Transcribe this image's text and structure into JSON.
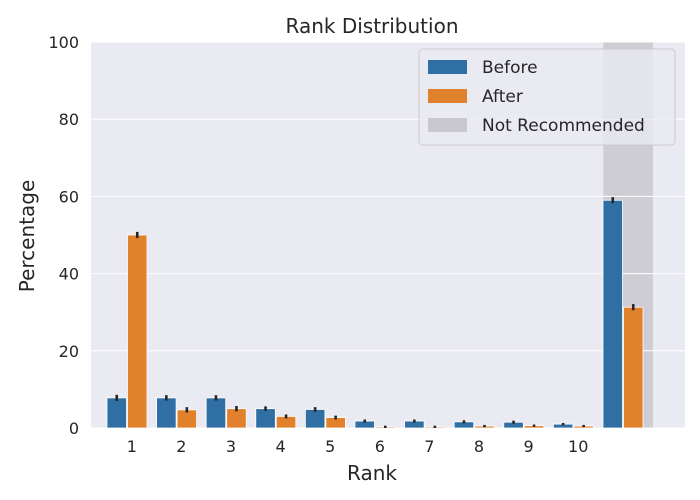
{
  "chart_data": {
    "type": "bar",
    "title": "Rank Distribution",
    "xlabel": "Rank",
    "ylabel": "Percentage",
    "ylim": [
      0,
      100
    ],
    "yticks": [
      "0",
      "20",
      "40",
      "60",
      "80",
      "100"
    ],
    "categories": [
      "1",
      "2",
      "3",
      "4",
      "5",
      "6",
      "7",
      "8",
      "9",
      "10",
      ""
    ],
    "series": [
      {
        "name": "Before",
        "color": "#2f6fa3",
        "values": [
          7.8,
          7.8,
          7.8,
          5.0,
          4.8,
          1.8,
          1.8,
          1.6,
          1.5,
          1.0,
          59.0
        ],
        "errors": [
          0.8,
          0.7,
          0.7,
          0.6,
          0.6,
          0.4,
          0.4,
          0.4,
          0.4,
          0.3,
          0.8
        ]
      },
      {
        "name": "After",
        "color": "#e1812c",
        "values": [
          50.0,
          4.7,
          5.0,
          3.0,
          2.7,
          0.3,
          0.3,
          0.5,
          0.6,
          0.5,
          31.3
        ],
        "errors": [
          0.8,
          0.7,
          0.7,
          0.5,
          0.5,
          0.3,
          0.3,
          0.3,
          0.3,
          0.3,
          0.8
        ]
      }
    ],
    "highlight": {
      "name": "Not Recommended",
      "category_index": 10,
      "color": "#c8c8ce"
    },
    "grid": true,
    "legend_position": "top-right",
    "colors": {
      "background": "#eaeaf2",
      "grid": "#ffffff",
      "error_bar": "#262626"
    }
  }
}
